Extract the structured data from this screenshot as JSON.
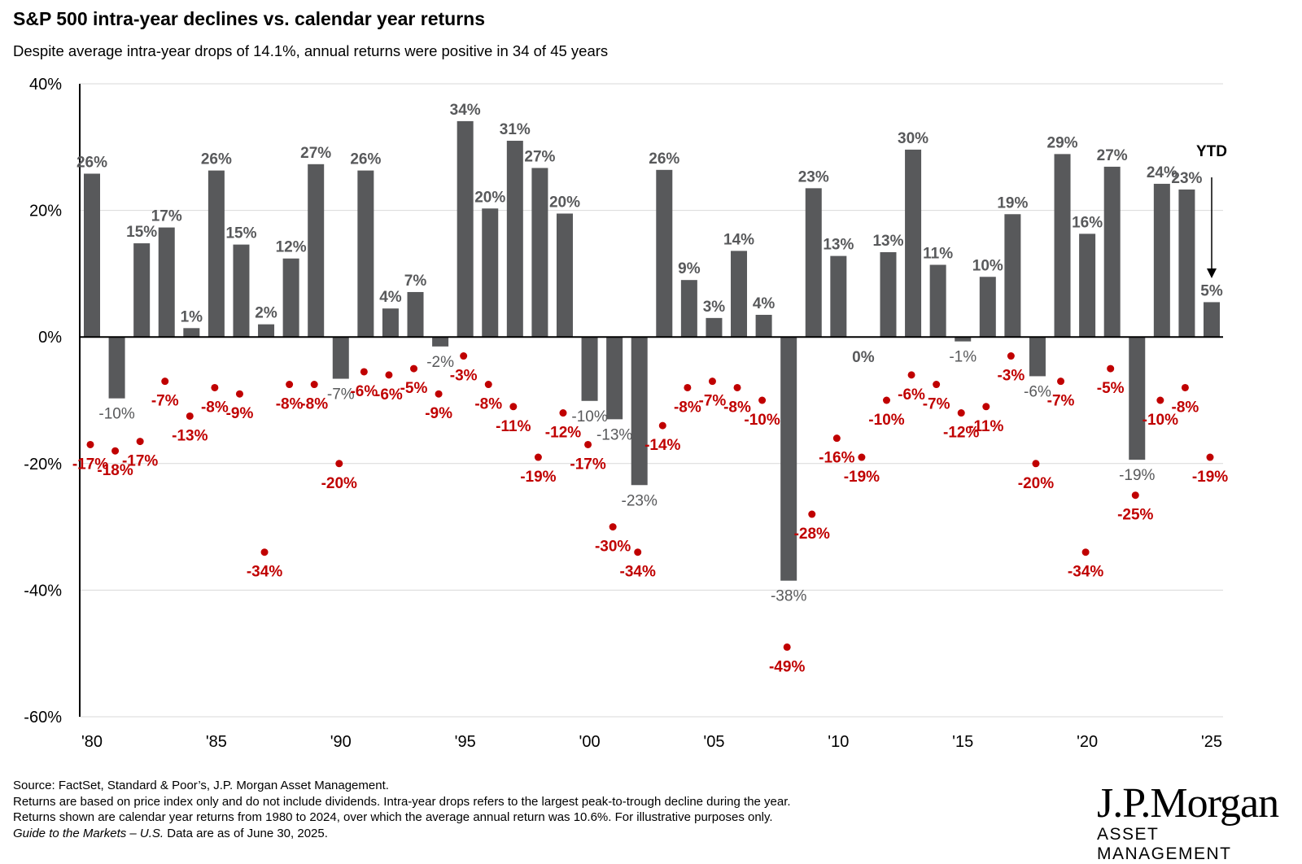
{
  "header": {
    "title": "S&P 500 intra-year declines vs. calendar year returns",
    "subtitle": "Despite average intra-year drops of 14.1%, annual returns were positive in 34 of 45 years"
  },
  "footer": {
    "line1": "Source: FactSet, Standard & Poor’s, J.P. Morgan Asset Management.",
    "line2": "Returns are based on price index only and do not include dividends. Intra-year drops refers to the largest peak-to-trough decline during the year.",
    "line3": "Returns shown are calendar year returns from 1980 to 2024, over which the average annual return was 10.6%. For illustrative purposes only.",
    "line4_italic": "Guide to the Markets – U.S.",
    "line4_rest": " Data are as of June 30, 2025."
  },
  "logo": {
    "main": "J.P.Morgan",
    "sub": "ASSET MANAGEMENT"
  },
  "colors": {
    "bar": "#58595b",
    "bar_label": "#58595b",
    "drop": "#c00000",
    "axis": "#000000",
    "grid": "#d9d9d9"
  },
  "chart_data": {
    "type": "bar",
    "ylim": [
      -60,
      40
    ],
    "yticks": [
      40,
      20,
      0,
      -20,
      -40,
      -60
    ],
    "ytick_labels": [
      "40%",
      "20%",
      "0%",
      "-20%",
      "-40%",
      "-60%"
    ],
    "xtick_years": [
      1980,
      1985,
      1990,
      1995,
      2000,
      2005,
      2010,
      2015,
      2020,
      2025
    ],
    "xtick_labels": [
      "'80",
      "'85",
      "'90",
      "'95",
      "'00",
      "'05",
      "'10",
      "'15",
      "'20",
      "'25"
    ],
    "grid": true,
    "annotation": "YTD",
    "years": [
      1980,
      1981,
      1982,
      1983,
      1984,
      1985,
      1986,
      1987,
      1988,
      1989,
      1990,
      1991,
      1992,
      1993,
      1994,
      1995,
      1996,
      1997,
      1998,
      1999,
      2000,
      2001,
      2002,
      2003,
      2004,
      2005,
      2006,
      2007,
      2008,
      2009,
      2010,
      2011,
      2012,
      2013,
      2014,
      2015,
      2016,
      2017,
      2018,
      2019,
      2020,
      2021,
      2022,
      2023,
      2024,
      2025
    ],
    "series": [
      {
        "values": [
          25.8,
          -9.7,
          14.8,
          17.3,
          1.4,
          26.3,
          14.6,
          2.0,
          12.4,
          27.3,
          -6.6,
          26.3,
          4.5,
          7.1,
          -1.5,
          34.1,
          20.3,
          31.0,
          26.7,
          19.5,
          -10.1,
          -13.0,
          -23.4,
          26.4,
          9.0,
          3.0,
          13.6,
          3.5,
          -38.5,
          23.5,
          12.8,
          0.0,
          13.4,
          29.6,
          11.4,
          -0.7,
          9.5,
          19.4,
          -6.2,
          28.9,
          16.3,
          26.9,
          -19.4,
          24.2,
          23.3,
          5.5
        ],
        "labels": [
          "26%",
          "-10%",
          "15%",
          "17%",
          "1%",
          "26%",
          "15%",
          "2%",
          "12%",
          "27%",
          "-7%",
          "26%",
          "4%",
          "7%",
          "-2%",
          "34%",
          "20%",
          "31%",
          "27%",
          "20%",
          "-10%",
          "-13%",
          "-23%",
          "26%",
          "9%",
          "3%",
          "14%",
          "4%",
          "-38%",
          "23%",
          "13%",
          "0%",
          "13%",
          "30%",
          "11%",
          "-1%",
          "10%",
          "19%",
          "-6%",
          "29%",
          "16%",
          "27%",
          "-19%",
          "24%",
          "23%",
          "5%"
        ]
      },
      {
        "values": [
          -17,
          -18,
          -16.5,
          -7,
          -12.5,
          -8,
          -9,
          -34,
          -7.5,
          -7.5,
          -20,
          -5.5,
          -6,
          -5,
          -9,
          -3,
          -7.5,
          -11,
          -19,
          -12,
          -17,
          -30,
          -34,
          -14,
          -8,
          -7,
          -8,
          -10,
          -49,
          -28,
          -16,
          -19,
          -10,
          -6,
          -7.5,
          -12,
          -11,
          -3,
          -20,
          -7,
          -34,
          -5,
          -25,
          -10,
          -8,
          -19
        ],
        "labels": [
          "-17%",
          "-18%",
          "-17%",
          "-7%",
          "-13%",
          "-8%",
          "-9%",
          "-34%",
          "-8%",
          "-8%",
          "-20%",
          "-6%",
          "-6%",
          "-5%",
          "-9%",
          "-3%",
          "-8%",
          "-11%",
          "-19%",
          "-12%",
          "-17%",
          "-30%",
          "-34%",
          "-14%",
          "-8%",
          "-7%",
          "-8%",
          "-10%",
          "-49%",
          "-28%",
          "-16%",
          "-19%",
          "-10%",
          "-6%",
          "-7%",
          "-12%",
          "-11%",
          "-3%",
          "-20%",
          "-7%",
          "-34%",
          "-5%",
          "-25%",
          "-10%",
          "-8%",
          "-19%"
        ]
      }
    ]
  }
}
